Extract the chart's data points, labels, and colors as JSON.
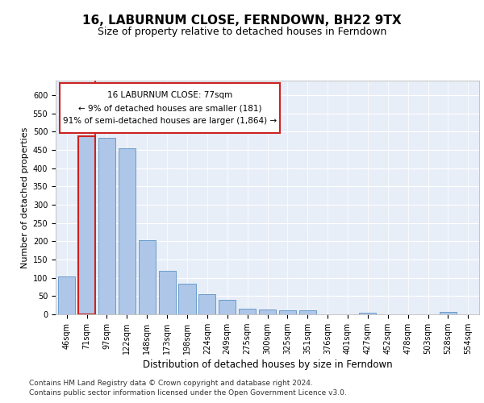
{
  "title": "16, LABURNUM CLOSE, FERNDOWN, BH22 9TX",
  "subtitle": "Size of property relative to detached houses in Ferndown",
  "xlabel": "Distribution of detached houses by size in Ferndown",
  "ylabel": "Number of detached properties",
  "categories": [
    "46sqm",
    "71sqm",
    "97sqm",
    "122sqm",
    "148sqm",
    "173sqm",
    "198sqm",
    "224sqm",
    "249sqm",
    "275sqm",
    "300sqm",
    "325sqm",
    "351sqm",
    "376sqm",
    "401sqm",
    "427sqm",
    "452sqm",
    "478sqm",
    "503sqm",
    "528sqm",
    "554sqm"
  ],
  "values": [
    104,
    487,
    484,
    455,
    202,
    120,
    83,
    56,
    40,
    15,
    14,
    10,
    10,
    0,
    0,
    5,
    0,
    0,
    0,
    6,
    0
  ],
  "bar_color": "#aec6e8",
  "bar_edge_color": "#5b92c4",
  "highlight_bar_edge_color": "#cc2222",
  "annotation_box_text": "16 LABURNUM CLOSE: 77sqm\n← 9% of detached houses are smaller (181)\n91% of semi-detached houses are larger (1,864) →",
  "ylim": [
    0,
    640
  ],
  "yticks": [
    0,
    50,
    100,
    150,
    200,
    250,
    300,
    350,
    400,
    450,
    500,
    550,
    600
  ],
  "plot_background_color": "#e8eef8",
  "footer_line1": "Contains HM Land Registry data © Crown copyright and database right 2024.",
  "footer_line2": "Contains public sector information licensed under the Open Government Licence v3.0.",
  "title_fontsize": 11,
  "subtitle_fontsize": 9,
  "xlabel_fontsize": 8.5,
  "ylabel_fontsize": 8,
  "tick_fontsize": 7,
  "annotation_fontsize": 7.5,
  "footer_fontsize": 6.5
}
